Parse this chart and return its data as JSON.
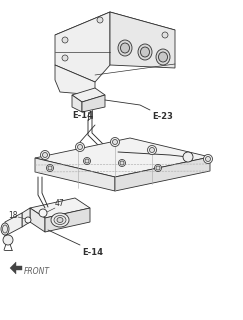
{
  "bg_color": "#ffffff",
  "lc": "#303030",
  "lc_light": "#888888",
  "lw": 0.6,
  "labels": {
    "E23": "E-23",
    "E14_top": "E-14",
    "E14_bot": "E-14",
    "num47": "47",
    "num18": "18",
    "front": "FRONT"
  },
  "figsize": [
    2.43,
    3.2
  ],
  "dpi": 100
}
